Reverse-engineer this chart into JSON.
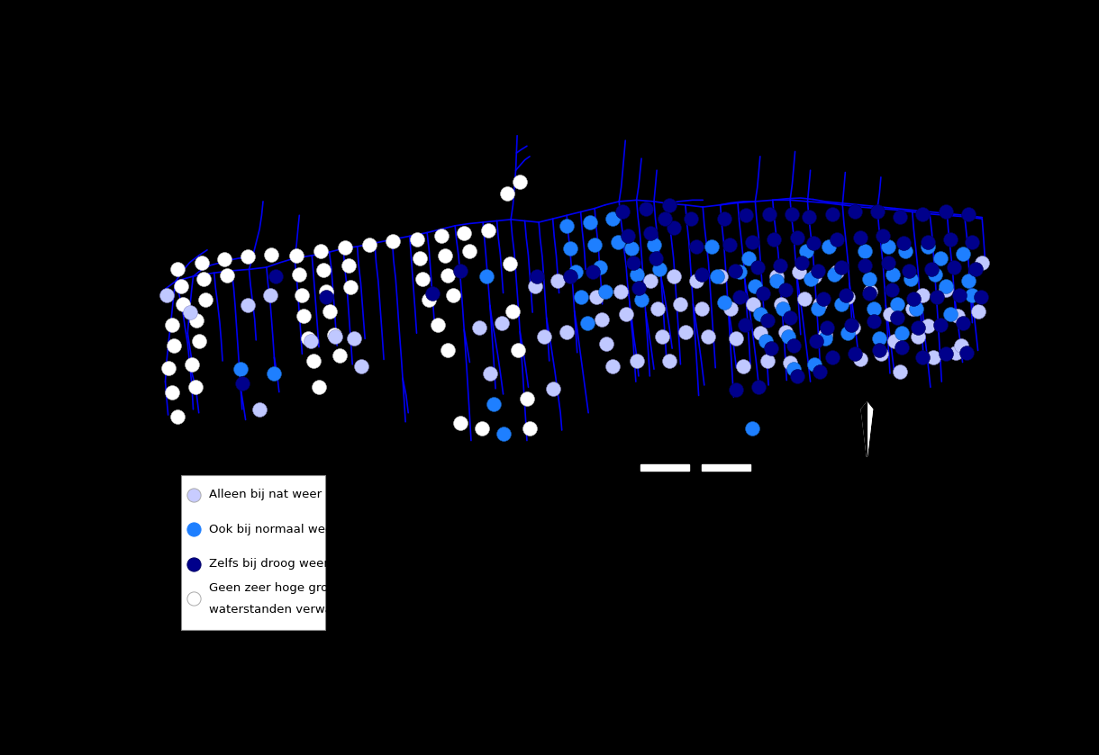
{
  "background_color": "#000000",
  "river_color": "#0000FF",
  "legend_bg": "#ffffff",
  "legend_text_color": "#000000",
  "legend_border_color": "#888888",
  "legend_entries": [
    {
      "label": "Alleen bij nat weer",
      "color": "#c8ccff",
      "edge": "#aaaaaa"
    },
    {
      "label": "Ook bij normaal weer",
      "color": "#1e7fff",
      "edge": "#1e7fff"
    },
    {
      "label": "Zelfs bij droog weer",
      "color": "#00008b",
      "edge": "#000066"
    },
    {
      "label": "Geen zeer hoge grond-\nwaterstanden verwacht",
      "color": "#ffffff",
      "edge": "#aaaaaa"
    }
  ],
  "dot_size": 130,
  "colors": {
    "light_blue": "#c0c8ff",
    "medium_blue": "#1e7fff",
    "dark_blue": "#00008b",
    "white": "#ffffff"
  },
  "scale_color": "#ffffff",
  "figsize": [
    12.2,
    8.39
  ],
  "dpi": 100
}
